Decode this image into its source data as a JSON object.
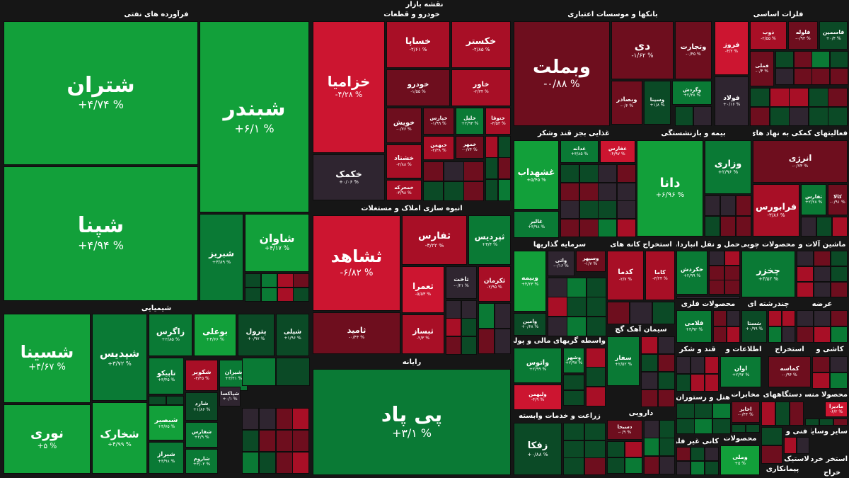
{
  "title": "نقشه بازار",
  "colors": {
    "strong_green": "#12a03a",
    "green": "#0a7a35",
    "dark_green": "#0b4a26",
    "neutral": "#2f2530",
    "dark_red": "#6e0e1e",
    "red": "#a80f26",
    "strong_red": "#cc1530",
    "background": "#161616"
  },
  "chart_data": {
    "type": "treemap",
    "title": "نقشه بازار",
    "sectors": [
      {
        "name": "فرآورده های نفتی",
        "tiles": [
          {
            "name": "شتران",
            "change": "+۴/۷۴ %",
            "value": 4.74
          },
          {
            "name": "شبندر",
            "change": "+۶/۱ %",
            "value": 6.1
          },
          {
            "name": "شپنا",
            "change": "+۴/۹۴ %",
            "value": 4.94
          },
          {
            "name": "شاوان",
            "change": "+۴/۱۷ %",
            "value": 4.17
          },
          {
            "name": "شبریز",
            "change": "+۳/۸۹ %",
            "value": 3.89
          }
        ]
      },
      {
        "name": "شیمیایی",
        "tiles": [
          {
            "name": "شسینا",
            "change": "+۴/۶۷ %",
            "value": 4.67
          },
          {
            "name": "نوری",
            "change": "+۵ %",
            "value": 5
          },
          {
            "name": "شپدیس",
            "change": "+۳/۷۲ %",
            "value": 3.72
          },
          {
            "name": "شخارک",
            "change": "+۴/۹۹ %",
            "value": 4.99
          },
          {
            "name": "زاگرس",
            "change": "+۲/۸۵ %",
            "value": 2.85
          },
          {
            "name": "بوعلی",
            "change": "+۴/۶۶ %",
            "value": 4.66
          },
          {
            "name": "پترول",
            "change": "+۰/۹۷ %",
            "value": 0.97
          },
          {
            "name": "شپلی",
            "change": "+۱/۹۶ %",
            "value": 1.96
          },
          {
            "name": "تاپیکو",
            "change": "+۳/۴۵ %",
            "value": 3.45
          },
          {
            "name": "شکویر",
            "change": "-۳/۴۵ %",
            "value": -3.45
          },
          {
            "name": "شیران",
            "change": "+۳/۳۱ %",
            "value": 3.31
          },
          {
            "name": "شارد",
            "change": "+۱/۸۶ %",
            "value": 1.86
          },
          {
            "name": "شپاکسا",
            "change": "+۰/۱ %",
            "value": 0.1
          },
          {
            "name": "شبصیر",
            "change": "+۴/۷۵ %",
            "value": 4.75
          },
          {
            "name": "شفارس",
            "change": "+۲/۹ %",
            "value": 2.9
          },
          {
            "name": "شیراز",
            "change": "+۳/۹۸ %",
            "value": 3.98
          },
          {
            "name": "شاروم",
            "change": "+۳/۰۲ %",
            "value": 3.02
          }
        ]
      },
      {
        "name": "خودرو و قطعات",
        "tiles": [
          {
            "name": "خزامیا",
            "change": "-۴/۲۸ %",
            "value": -4.28
          },
          {
            "name": "خساپا",
            "change": "-۲/۶۱ %",
            "value": -2.61
          },
          {
            "name": "خکستر",
            "change": "-۲/۸۵ %",
            "value": -2.85
          },
          {
            "name": "خودرو",
            "change": "-۱/۵۵ %",
            "value": -1.55
          },
          {
            "name": "خاور",
            "change": "-۲/۳۴ %",
            "value": -2.34
          },
          {
            "name": "خکمک",
            "change": "+۰/۰۶ %",
            "value": 0.06
          },
          {
            "name": "خویش",
            "change": "-۰/۷۶ %",
            "value": -0.76
          },
          {
            "name": "خپارس",
            "change": "-۱/۹۹ %",
            "value": -1.99
          },
          {
            "name": "خلیل",
            "change": "+۲/۹۳ %",
            "value": 2.93
          },
          {
            "name": "ختوقا",
            "change": "-۳/۵۳ %",
            "value": -3.53
          },
          {
            "name": "خبهمن",
            "change": "-۲/۳۸ %",
            "value": -2.38
          },
          {
            "name": "خمهر",
            "change": "-۰/۷۴ %",
            "value": -0.74
          },
          {
            "name": "خشتاد",
            "change": "-۲/۸۸ %",
            "value": -2.88
          },
          {
            "name": "خمحرکه",
            "change": "-۳/۹۸ %",
            "value": -3.98
          }
        ]
      },
      {
        "name": "انبوه سازی املاک و مستغلات",
        "tiles": [
          {
            "name": "ثشاهد",
            "change": "-۶/۸۲ %",
            "value": -6.82
          },
          {
            "name": "ثفارس",
            "change": "-۳/۲۲ %",
            "value": -3.22
          },
          {
            "name": "ثپردیس",
            "change": "+۳/۴ %",
            "value": 3.4
          },
          {
            "name": "ثعمرا",
            "change": "-۵/۵۳ %",
            "value": -5.53
          },
          {
            "name": "ثاخت",
            "change": "-۰/۲۱ %",
            "value": -0.21
          },
          {
            "name": "ثکرمان",
            "change": "-۲/۹۵ %",
            "value": -2.95
          },
          {
            "name": "ثامید",
            "change": "-۰/۴۴ %",
            "value": -0.44
          },
          {
            "name": "ثبساز",
            "change": "-۲/۳ %",
            "value": -2.3
          }
        ]
      },
      {
        "name": "رایانه",
        "tiles": [
          {
            "name": "پی پاد",
            "change": "+۳/۱ %",
            "value": 3.1
          }
        ]
      },
      {
        "name": "بانکها و موسسات اعتباری",
        "tiles": [
          {
            "name": "وبملت",
            "change": "-۰/۸۸ %",
            "value": -0.88
          },
          {
            "name": "دی",
            "change": "-۱/۶۲ %",
            "value": -1.62
          },
          {
            "name": "وتجارت",
            "change": "-۰/۴۵ %",
            "value": -0.45
          },
          {
            "name": "وگردش",
            "change": "+۲/۳۸ %",
            "value": 2.38
          },
          {
            "name": "وبصادر",
            "change": "-۰/۶ %",
            "value": -0.6
          },
          {
            "name": "وسینا",
            "change": "+۱/۸ %",
            "value": 1.8
          }
        ]
      },
      {
        "name": "فلزات اساسی",
        "tiles": [
          {
            "name": "فروز",
            "change": "-۴/۲ %",
            "value": -4.2
          },
          {
            "name": "ذوب",
            "change": "-۲/۵۵ %",
            "value": -2.55
          },
          {
            "name": "فلوله",
            "change": "-۰/۹۳ %",
            "value": -0.93
          },
          {
            "name": "فاسمین",
            "change": "+۰/۴ %",
            "value": 0.4
          },
          {
            "name": "فملی",
            "change": "-۰/۴ %",
            "value": -0.4
          },
          {
            "name": "فولاد",
            "change": "+۰/۱۶ %",
            "value": 0.16
          }
        ]
      },
      {
        "name": "غذایی بجز قند وشکر",
        "tiles": [
          {
            "name": "غشهداب",
            "change": "+۵/۴۵ %",
            "value": 5.45
          },
          {
            "name": "غدانه",
            "change": "+۳/۸۵ %",
            "value": 3.85
          },
          {
            "name": "غفارس",
            "change": "-۴/۹۷ %",
            "value": -4.97
          },
          {
            "name": "غالبر",
            "change": "+۳/۹۸ %",
            "value": 3.98
          }
        ]
      },
      {
        "name": "بیمه و بازنشستگی",
        "tiles": [
          {
            "name": "دانا",
            "change": "+۶/۹۶ %",
            "value": 6.96
          },
          {
            "name": "وزاری",
            "change": "+۲/۹۶ %",
            "value": 2.96
          }
        ]
      },
      {
        "name": "فعالیتهای کمکی به نهاد های",
        "tiles": [
          {
            "name": "انرژی",
            "change": "-۰/۷۴ %",
            "value": -0.74
          },
          {
            "name": "فرابورس",
            "change": "-۳/۸۶ %",
            "value": -3.86
          },
          {
            "name": "تفارس",
            "change": "+۲/۲۸ %",
            "value": 2.28
          },
          {
            "name": "کالا",
            "change": "-۰/۹۱ %",
            "value": -0.91
          }
        ]
      },
      {
        "name": "سرمایه گذاریها",
        "tiles": [
          {
            "name": "وبیمه",
            "change": "+۴/۲۳ %",
            "value": 4.23
          },
          {
            "name": "واتی",
            "change": "-۰/۱۶ %",
            "value": -0.16
          },
          {
            "name": "وسپهر",
            "change": "-۱/۷ %",
            "value": -1.7
          },
          {
            "name": "وامین",
            "change": "+۰/۶۸ %",
            "value": 0.68
          }
        ]
      },
      {
        "name": "استخراج کانه های",
        "tiles": [
          {
            "name": "کدما",
            "change": "-۲/۷ %",
            "value": -2.7
          },
          {
            "name": "کاما",
            "change": "-۳/۲۴ %",
            "value": -3.24
          }
        ]
      },
      {
        "name": "حمل و نقل انبارداری",
        "tiles": [
          {
            "name": "حکردش",
            "change": "+۲/۹۹ %",
            "value": 2.99
          }
        ]
      },
      {
        "name": "محصولات چوبی",
        "tiles": [
          {
            "name": "چخزر",
            "change": "+۳/۵۲ %",
            "value": 3.52
          }
        ]
      },
      {
        "name": "ماشین آلات و",
        "tiles": []
      },
      {
        "name": "محصولات فلزی",
        "tiles": [
          {
            "name": "فلامی",
            "change": "+۳/۹۲ %",
            "value": 3.92
          }
        ]
      },
      {
        "name": "چندرشته ای",
        "tiles": [
          {
            "name": "شستا",
            "change": "+۰/۹۹ %",
            "value": 0.99
          }
        ]
      },
      {
        "name": "عرضه",
        "tiles": []
      },
      {
        "name": "واسطه گریهای مالی و پولی",
        "tiles": [
          {
            "name": "واتوس",
            "change": "+۲/۹۹ %",
            "value": 2.99
          },
          {
            "name": "وشهر",
            "change": "+۲/۹۷ %",
            "value": 2.97
          },
          {
            "name": "ولبهمن",
            "change": "-۴/۹ %",
            "value": -4.9
          }
        ]
      },
      {
        "name": "سیمان آهک گچ",
        "tiles": [
          {
            "name": "سفار",
            "change": "+۲/۵۲ %",
            "value": 2.52
          }
        ]
      },
      {
        "name": "قند و شکر",
        "tiles": []
      },
      {
        "name": "اطلاعات و",
        "tiles": [
          {
            "name": "اوان",
            "change": "+۲/۹۲ %",
            "value": 2.92
          }
        ]
      },
      {
        "name": "استخراج",
        "tiles": [
          {
            "name": "کماسه",
            "change": "-۰/۹۴ %",
            "value": -0.94
          }
        ]
      },
      {
        "name": "کاشی و",
        "tiles": []
      },
      {
        "name": "هتل و رستوران",
        "tiles": []
      },
      {
        "name": "مخابرات",
        "tiles": [
          {
            "name": "اخابر",
            "change": "-۰/۴۴ %",
            "value": -0.44
          }
        ]
      },
      {
        "name": "دستگاههای",
        "tiles": [
          {
            "name": "مادیرا",
            "change": "-۶/۲ %",
            "value": -6.2
          }
        ]
      },
      {
        "name": "محصولا منسوجا",
        "tiles": []
      },
      {
        "name": "زراعت و خدمات وابسته",
        "tiles": [
          {
            "name": "زفکا",
            "change": "+۰/۸۸ %",
            "value": 0.88
          }
        ]
      },
      {
        "name": "دارویی",
        "tiles": [
          {
            "name": "دسبحا",
            "change": "-۰/۹ %",
            "value": -0.9
          }
        ]
      },
      {
        "name": "کانی غیر فلزی",
        "tiles": []
      },
      {
        "name": "محصولات",
        "tiles": [
          {
            "name": "وملی",
            "change": "+۵ %",
            "value": 5
          }
        ]
      },
      {
        "name": "فنی و",
        "tiles": []
      },
      {
        "name": "سایر وسایل",
        "tiles": []
      },
      {
        "name": "استخر خرد",
        "tiles": []
      },
      {
        "name": "لاستیک",
        "tiles": []
      },
      {
        "name": "پیمانکاری",
        "tiles": []
      },
      {
        "name": "خراج",
        "tiles": []
      }
    ]
  }
}
